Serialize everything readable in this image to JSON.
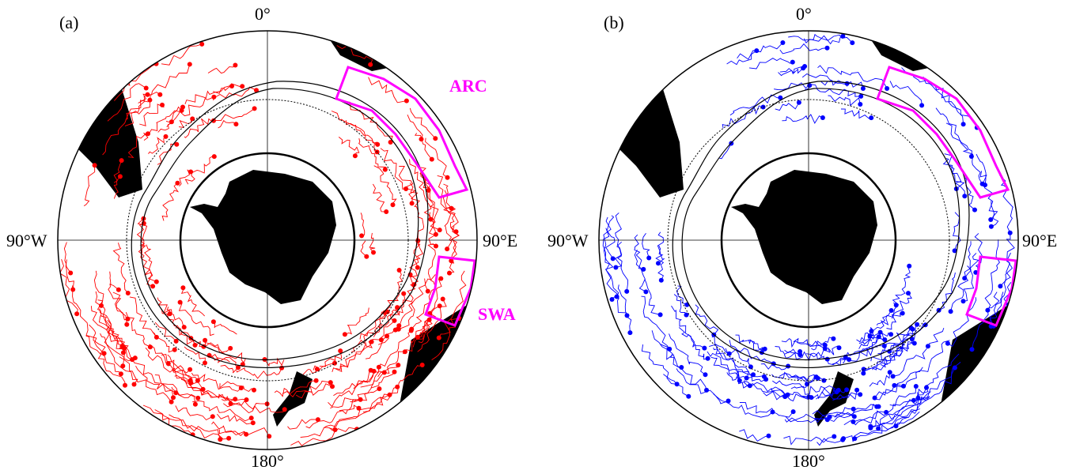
{
  "figure": {
    "panels": [
      {
        "label": "(a)",
        "track_color": "#ff0000",
        "region_labels": [
          "ARC",
          "SWA"
        ],
        "lon_labels": {
          "top": "0°",
          "bottom": "180°",
          "left": "90°W",
          "right": "90°E"
        }
      },
      {
        "label": "(b)",
        "track_color": "#0000ff",
        "region_labels": [],
        "lon_labels": {
          "top": "0°",
          "bottom": "180°",
          "left": "90°W",
          "right": "90°E"
        }
      }
    ],
    "region_color": "#ff00ff",
    "land_color": "#000000"
  }
}
